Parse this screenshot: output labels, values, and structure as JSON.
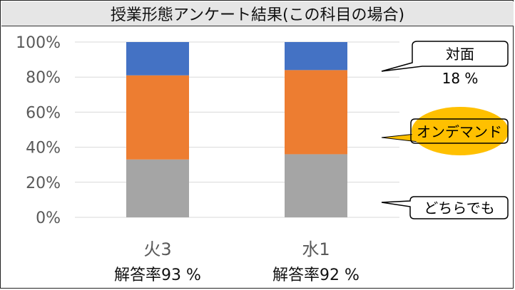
{
  "title": "授業形態アンケート結果(この科目の場合)",
  "chart_data": {
    "type": "bar",
    "stacked": true,
    "categories": [
      "火3",
      "水1"
    ],
    "series": [
      {
        "name": "どちらでも",
        "color": "#a5a5a5",
        "values": [
          33,
          36
        ]
      },
      {
        "name": "オンデマンド",
        "color": "#ed7d31",
        "values": [
          48,
          48
        ]
      },
      {
        "name": "対面",
        "color": "#4472c4",
        "values": [
          19,
          16
        ]
      }
    ],
    "ylim": [
      0,
      100
    ],
    "yticks": [
      "0%",
      "20%",
      "40%",
      "60%",
      "80%",
      "100%"
    ],
    "response_rates": [
      "解答率93 %",
      "解答率92 %"
    ],
    "grid": true
  },
  "callouts": {
    "face_to_face": {
      "label": "対面",
      "value": "18 %"
    },
    "on_demand": {
      "label": "オンデマンド",
      "highlight": "#ffc000"
    },
    "either": {
      "label": "どちらでも"
    }
  }
}
